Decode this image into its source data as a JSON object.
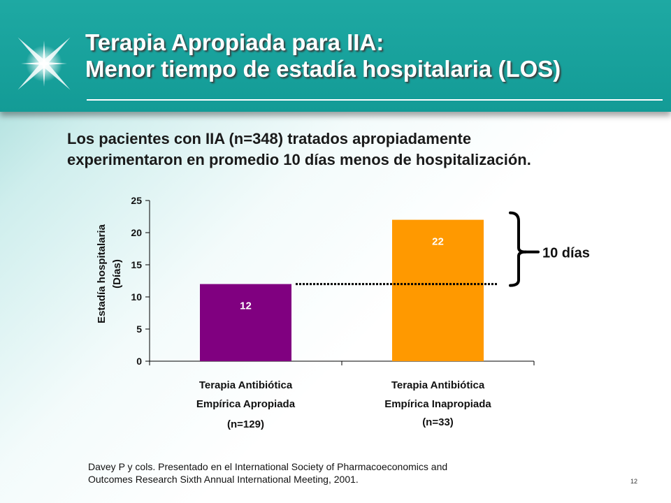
{
  "title": {
    "line1": "Terapia Apropiada para IIA:",
    "line2": "Menor tiempo de estadía hospitalaria (LOS)"
  },
  "subtitle": {
    "line1": "Los pacientes con IIA (n=348) tratados apropiadamente",
    "line2": "experimentaron en promedio 10 días menos de hospitalización."
  },
  "chart_data": {
    "type": "bar",
    "categories": [
      [
        "Terapia Antibiótica",
        "Empírica Apropiada",
        "(n=129)"
      ],
      [
        "Terapia Antibiótica",
        "Empírica Inapropiada",
        "(n=33)"
      ]
    ],
    "values": [
      12,
      22
    ],
    "data_labels": [
      "12",
      "22"
    ],
    "bar_colors": [
      "#800080",
      "#ff9900"
    ],
    "ylabel_lines": [
      "Estadía hospitalaria",
      "(Días)"
    ],
    "ylim": [
      0,
      25
    ],
    "yticks": [
      0,
      5,
      10,
      15,
      20,
      25
    ],
    "grid": false,
    "annotation": {
      "text": "10 días",
      "from_value": 12,
      "to_value": 22
    }
  },
  "citation": {
    "line1": "Davey P y cols. Presentado en el International Society of Pharmacoeconomics and",
    "line2": "Outcomes Research Sixth Annual International Meeting, 2001."
  },
  "page_number": "12",
  "colors": {
    "header": "#139b96",
    "bar_appropriate": "#800080",
    "bar_inappropriate": "#ff9900"
  }
}
